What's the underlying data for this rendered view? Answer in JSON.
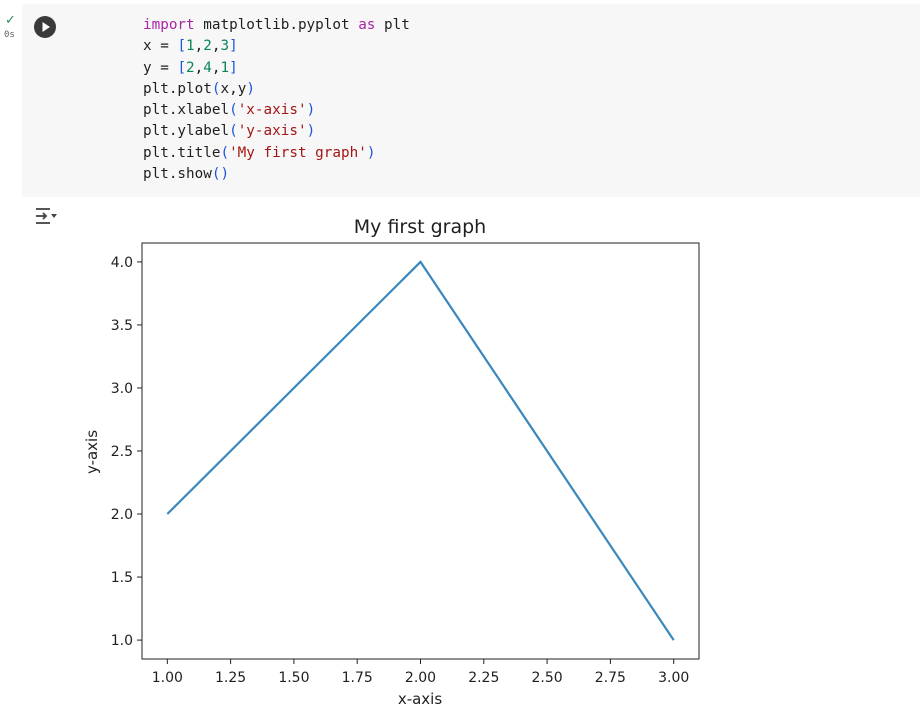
{
  "cell": {
    "status_icon": "check-icon",
    "exec_time": "0s",
    "run_icon": "play-icon",
    "output_icon": "output-toggle-icon",
    "code_lines": [
      [
        {
          "t": "import",
          "c": "kw"
        },
        {
          "t": " matplotlib.pyplot "
        },
        {
          "t": "as",
          "c": "kw"
        },
        {
          "t": " plt"
        }
      ],
      [
        {
          "t": "x = "
        },
        {
          "t": "[",
          "c": "br"
        },
        {
          "t": "1",
          "c": "num"
        },
        {
          "t": ","
        },
        {
          "t": "2",
          "c": "num"
        },
        {
          "t": ","
        },
        {
          "t": "3",
          "c": "num"
        },
        {
          "t": "]",
          "c": "br"
        }
      ],
      [
        {
          "t": "y = "
        },
        {
          "t": "[",
          "c": "br"
        },
        {
          "t": "2",
          "c": "num"
        },
        {
          "t": ","
        },
        {
          "t": "4",
          "c": "num"
        },
        {
          "t": ","
        },
        {
          "t": "1",
          "c": "num"
        },
        {
          "t": "]",
          "c": "br"
        }
      ],
      [
        {
          "t": "plt.plot"
        },
        {
          "t": "(",
          "c": "br"
        },
        {
          "t": "x,y"
        },
        {
          "t": ")",
          "c": "br"
        }
      ],
      [
        {
          "t": "plt.xlabel"
        },
        {
          "t": "(",
          "c": "br"
        },
        {
          "t": "'x-axis'",
          "c": "str"
        },
        {
          "t": ")",
          "c": "br"
        }
      ],
      [
        {
          "t": "plt.ylabel"
        },
        {
          "t": "(",
          "c": "br"
        },
        {
          "t": "'y-axis'",
          "c": "str"
        },
        {
          "t": ")",
          "c": "br"
        }
      ],
      [
        {
          "t": "plt.title"
        },
        {
          "t": "(",
          "c": "br"
        },
        {
          "t": "'My first graph'",
          "c": "str"
        },
        {
          "t": ")",
          "c": "br"
        }
      ],
      [
        {
          "t": "plt.show"
        },
        {
          "t": "()",
          "c": "br"
        }
      ]
    ]
  },
  "chart_data": {
    "type": "line",
    "title": "My first graph",
    "xlabel": "x-axis",
    "ylabel": "y-axis",
    "xlim": [
      0.9,
      3.1
    ],
    "ylim": [
      0.85,
      4.15
    ],
    "xticks": [
      1.0,
      1.25,
      1.5,
      1.75,
      2.0,
      2.25,
      2.5,
      2.75,
      3.0
    ],
    "xtick_labels": [
      "1.00",
      "1.25",
      "1.50",
      "1.75",
      "2.00",
      "2.25",
      "2.50",
      "2.75",
      "3.00"
    ],
    "yticks": [
      1.0,
      1.5,
      2.0,
      2.5,
      3.0,
      3.5,
      4.0
    ],
    "ytick_labels": [
      "1.0",
      "1.5",
      "2.0",
      "2.5",
      "3.0",
      "3.5",
      "4.0"
    ],
    "grid": false,
    "series": [
      {
        "x": [
          1,
          2,
          3
        ],
        "y": [
          2,
          4,
          1
        ],
        "color": "#3a87bd"
      }
    ]
  }
}
